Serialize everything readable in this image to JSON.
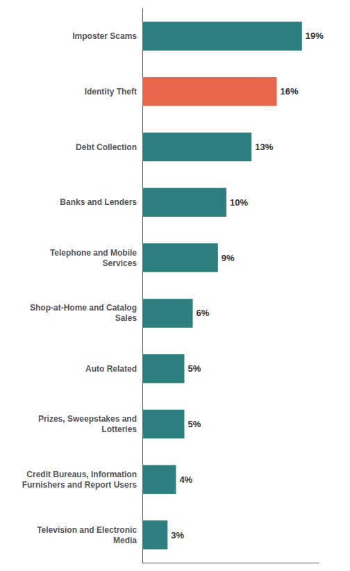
{
  "chart_data": {
    "type": "bar",
    "orientation": "horizontal",
    "categories": [
      "Television and Electronic\nMedia",
      "Credit Bureaus, Information\nFurnishers and Report Users",
      "Prizes, Sweepstakes and\nLotteries",
      "Auto Related",
      "Shop-at-Home and Catalog\nSales",
      "Telephone and Mobile\nServices",
      "Banks and Lenders",
      "Debt Collection",
      "Identity Theft",
      "Imposter Scams"
    ],
    "values": [
      3,
      4,
      5,
      5,
      6,
      9,
      10,
      13,
      16,
      19
    ],
    "value_labels": [
      "3%",
      "4%",
      "5%",
      "5%",
      "6%",
      "9%",
      "10%",
      "13%",
      "16%",
      "19%"
    ],
    "data_labels": true,
    "colors": [
      "#2e7f7f",
      "#2e7f7f",
      "#2e7f7f",
      "#2e7f7f",
      "#2e7f7f",
      "#2e7f7f",
      "#2e7f7f",
      "#2e7f7f",
      "#e8664a",
      "#2e7f7f"
    ],
    "xlim": [
      0,
      21
    ],
    "tick_labels": "y",
    "grid": false
  }
}
